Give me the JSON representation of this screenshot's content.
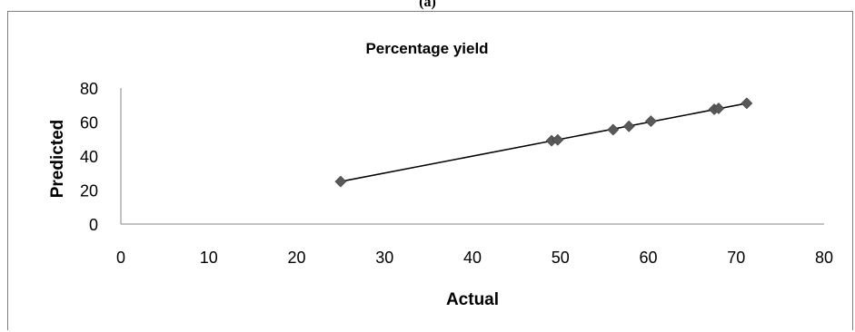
{
  "figure_label": "(a)",
  "chart_data": {
    "type": "scatter",
    "title": "Percentage yield",
    "xlabel": "Actual",
    "ylabel": "Predicted",
    "xlim": [
      0,
      80
    ],
    "ylim": [
      0,
      80
    ],
    "xticks": [
      0,
      10,
      20,
      30,
      40,
      50,
      60,
      70,
      80
    ],
    "yticks": [
      0,
      20,
      40,
      60,
      80
    ],
    "grid": false,
    "legend": "none",
    "marker_color": "#595959",
    "line_color": "#000000",
    "series": [
      {
        "x": [
          25,
          49,
          49.7,
          56,
          57.8,
          60.3,
          67.5,
          68,
          71.2
        ],
        "y": [
          25,
          49,
          49.5,
          55.5,
          57.5,
          60.5,
          67.5,
          68,
          71
        ]
      }
    ],
    "trendline": {
      "x": [
        25,
        71.2
      ],
      "y": [
        25,
        71
      ]
    }
  }
}
